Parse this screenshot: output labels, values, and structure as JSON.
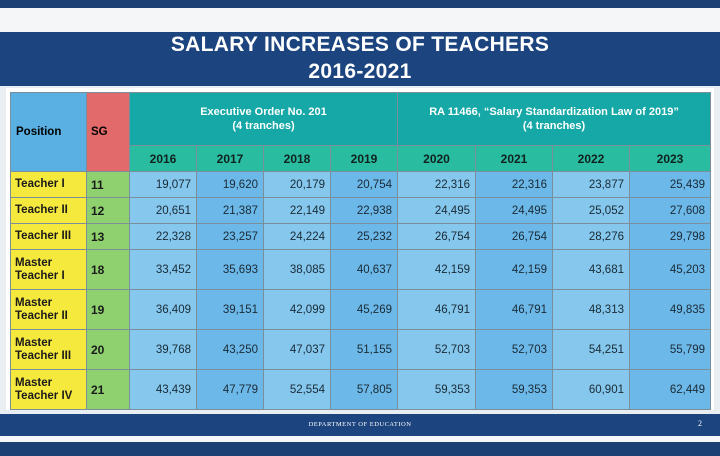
{
  "title": {
    "line1": "SALARY INCREASES OF TEACHERS",
    "line2": "2016-2021"
  },
  "table": {
    "col_position": "Position",
    "col_sg": "SG",
    "group1": {
      "line1": "Executive Order No. 201",
      "line2": "(4 tranches)"
    },
    "group2": {
      "line1": "RA 11466, “Salary Standardization Law of 2019”",
      "line2": "(4 tranches)"
    },
    "years": [
      "2016",
      "2017",
      "2018",
      "2019",
      "2020",
      "2021",
      "2022",
      "2023"
    ],
    "rows": [
      {
        "position": [
          "Teacher I"
        ],
        "sg": "11",
        "values": [
          "19,077",
          "19,620",
          "20,179",
          "20,754",
          "22,316",
          "22,316",
          "23,877",
          "25,439"
        ]
      },
      {
        "position": [
          "Teacher II"
        ],
        "sg": "12",
        "values": [
          "20,651",
          "21,387",
          "22,149",
          "22,938",
          "24,495",
          "24,495",
          "25,052",
          "27,608"
        ]
      },
      {
        "position": [
          "Teacher III"
        ],
        "sg": "13",
        "values": [
          "22,328",
          "23,257",
          "24,224",
          "25,232",
          "26,754",
          "26,754",
          "28,276",
          "29,798"
        ]
      },
      {
        "position": [
          "Master",
          "Teacher I"
        ],
        "sg": "18",
        "values": [
          "33,452",
          "35,693",
          "38,085",
          "40,637",
          "42,159",
          "42,159",
          "43,681",
          "45,203"
        ]
      },
      {
        "position": [
          "Master",
          "Teacher II"
        ],
        "sg": "19",
        "values": [
          "36,409",
          "39,151",
          "42,099",
          "45,269",
          "46,791",
          "46,791",
          "48,313",
          "49,835"
        ]
      },
      {
        "position": [
          "Master",
          "Teacher III"
        ],
        "sg": "20",
        "values": [
          "39,768",
          "43,250",
          "47,037",
          "51,155",
          "52,703",
          "52,703",
          "54,251",
          "55,799"
        ]
      },
      {
        "position": [
          "Master",
          "Teacher IV"
        ],
        "sg": "21",
        "values": [
          "43,439",
          "47,779",
          "52,554",
          "57,805",
          "59,353",
          "59,353",
          "60,901",
          "62,449"
        ]
      }
    ]
  },
  "footer": {
    "department": "DEPARTMENT OF EDUCATION",
    "page": "2"
  }
}
